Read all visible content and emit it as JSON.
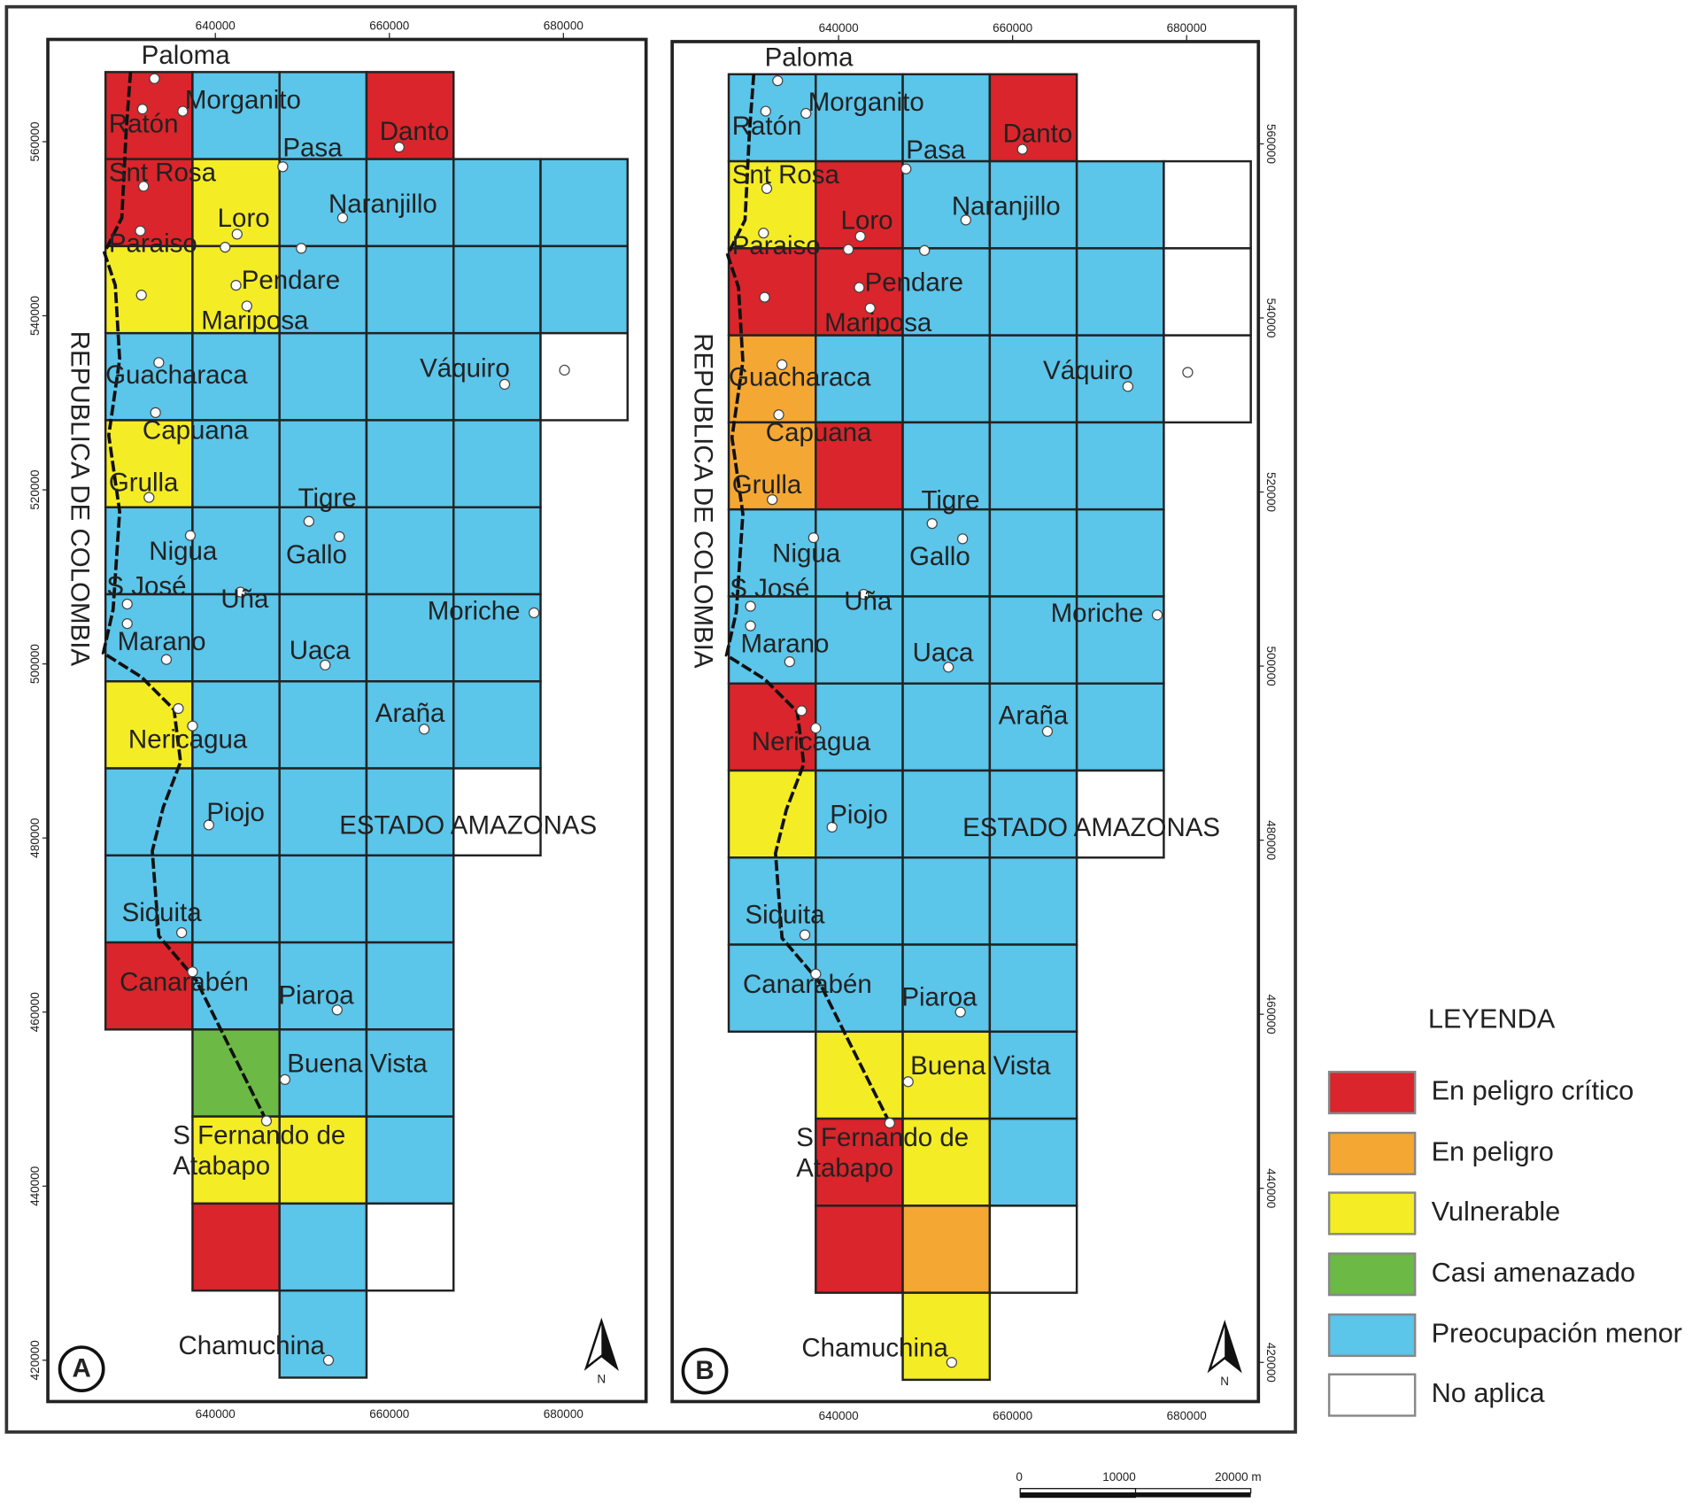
{
  "legend": {
    "title": "LEYENDA",
    "items": [
      {
        "label": "En peligro crítico",
        "color": "#d9252b"
      },
      {
        "label": "En peligro",
        "color": "#f5a733"
      },
      {
        "label": "Vulnerable",
        "color": "#f4ec25"
      },
      {
        "label": "Casi amenazado",
        "color": "#6cb946"
      },
      {
        "label": "Preocupación menor",
        "color": "#5bc5ea"
      },
      {
        "label": "No aplica",
        "color": "#ffffff"
      }
    ]
  },
  "panels": [
    {
      "letter": "A",
      "cells": [
        [
          0,
          4,
          4,
          0,
          null,
          null
        ],
        [
          0,
          2,
          4,
          4,
          4,
          4
        ],
        [
          2,
          2,
          4,
          4,
          4,
          4
        ],
        [
          4,
          4,
          4,
          4,
          4,
          5
        ],
        [
          2,
          4,
          4,
          4,
          4,
          null
        ],
        [
          4,
          4,
          4,
          4,
          4,
          null
        ],
        [
          4,
          4,
          4,
          4,
          4,
          null
        ],
        [
          2,
          4,
          4,
          4,
          4,
          null
        ],
        [
          4,
          4,
          4,
          4,
          5,
          null
        ],
        [
          4,
          4,
          4,
          4,
          null,
          null
        ],
        [
          0,
          4,
          4,
          4,
          null,
          null
        ],
        [
          null,
          3,
          4,
          4,
          null,
          null
        ],
        [
          null,
          2,
          2,
          4,
          null,
          null
        ],
        [
          null,
          0,
          4,
          5,
          null,
          null
        ],
        [
          null,
          null,
          4,
          null,
          null,
          null
        ]
      ]
    },
    {
      "letter": "B",
      "cells": [
        [
          4,
          4,
          4,
          0,
          null,
          null
        ],
        [
          2,
          0,
          4,
          4,
          4,
          5
        ],
        [
          0,
          0,
          4,
          4,
          4,
          5
        ],
        [
          1,
          4,
          4,
          4,
          4,
          5
        ],
        [
          1,
          0,
          4,
          4,
          4,
          null
        ],
        [
          4,
          4,
          4,
          4,
          4,
          null
        ],
        [
          4,
          4,
          4,
          4,
          4,
          null
        ],
        [
          0,
          4,
          4,
          4,
          4,
          null
        ],
        [
          2,
          4,
          4,
          4,
          5,
          null
        ],
        [
          4,
          4,
          4,
          4,
          null,
          null
        ],
        [
          4,
          4,
          4,
          4,
          null,
          null
        ],
        [
          null,
          2,
          2,
          4,
          null,
          null
        ],
        [
          null,
          0,
          2,
          4,
          null,
          null
        ],
        [
          null,
          0,
          1,
          5,
          null,
          null
        ],
        [
          null,
          null,
          2,
          null,
          null,
          null
        ]
      ]
    }
  ],
  "localities": [
    "Paloma",
    "Ratón",
    "Morganito",
    "Pasa",
    "Danto",
    "Snt Rosa",
    "Naranjillo",
    "Loro",
    "Paraiso",
    "Pendare",
    "Mariposa",
    "Guacharaca",
    "Váquiro",
    "Capuana",
    "Grulla",
    "Tigre",
    "Nigua",
    "Gallo",
    "S José",
    "Uña",
    "Moriche",
    "Marano",
    "Uaca",
    "Araña",
    "Nericagua",
    "Piojo",
    "Siquita",
    "Canarabén",
    "Piaroa",
    "Buena Vista",
    "S Fernando de",
    "Atabapo",
    "Chamuchina"
  ],
  "regions": {
    "country": "REPUBLICA DE COLOMBIA",
    "state": "ESTADO AMAZONAS"
  },
  "north": "N",
  "xticks": [
    640000,
    660000,
    680000
  ],
  "yticks": [
    560000,
    540000,
    520000,
    500000,
    480000,
    460000,
    440000,
    420000
  ],
  "scale_bar": [
    "0",
    "10000",
    "20000 m"
  ]
}
